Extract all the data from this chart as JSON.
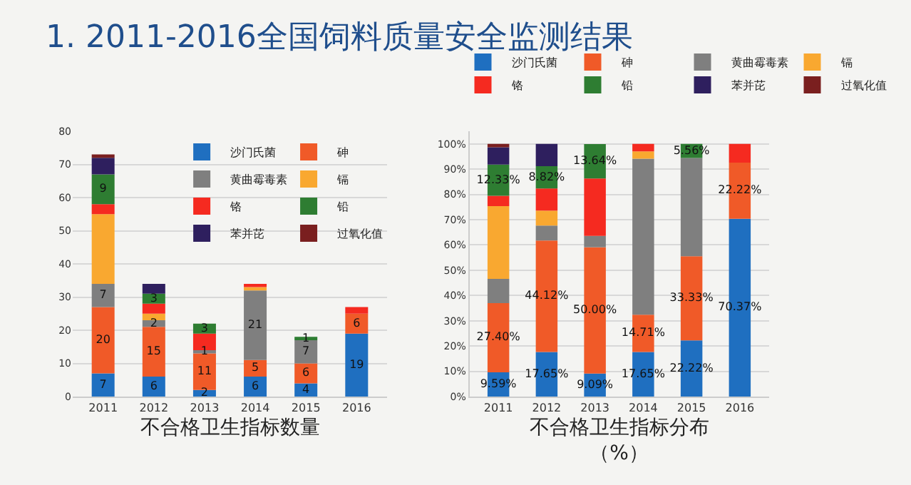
{
  "chart_data": [
    {
      "type": "bar",
      "title": "1. 2011-2016全国饲料质量安全监测结果",
      "xlabel": "不合格卫生指标数量",
      "categories": [
        "2011",
        "2012",
        "2013",
        "2014",
        "2015",
        "2016"
      ],
      "stacked": true,
      "ylim": [
        0,
        80
      ],
      "yticks": [
        0,
        10,
        20,
        30,
        40,
        50,
        60,
        70,
        80
      ],
      "grid": "y",
      "legend": "top right",
      "series": [
        {
          "name": "沙门氏菌",
          "color": "#1f6fc0",
          "values": [
            7,
            6,
            2,
            6,
            4,
            19
          ],
          "value_labels": [
            "7",
            "6",
            "2",
            "6",
            "4",
            "19"
          ]
        },
        {
          "name": "砷",
          "color": "#f05a28",
          "values": [
            20,
            15,
            11,
            5,
            6,
            6
          ],
          "value_labels": [
            "20",
            "15",
            "11",
            "5",
            "6",
            "6"
          ]
        },
        {
          "name": "黄曲霉毒素",
          "color": "#7f7f7f",
          "values": [
            7,
            2,
            1,
            21,
            7,
            0
          ],
          "value_labels": [
            "7",
            "2",
            "1",
            "21",
            "7",
            null
          ]
        },
        {
          "name": "镉",
          "color": "#f9a830",
          "values": [
            21,
            2,
            0,
            1,
            0,
            0
          ]
        },
        {
          "name": "铬",
          "color": "#f52a20",
          "values": [
            3,
            3,
            5,
            1,
            0,
            2
          ]
        },
        {
          "name": "铅",
          "color": "#2e7d32",
          "values": [
            9,
            3,
            3,
            0,
            1,
            0
          ],
          "value_labels": [
            "9",
            "3",
            "3",
            null,
            "1",
            null
          ]
        },
        {
          "name": "苯并芘",
          "color": "#2e1f5e",
          "values": [
            5,
            3,
            0,
            0,
            0,
            0
          ]
        },
        {
          "name": "过氧化值",
          "color": "#7a1f1f",
          "values": [
            1,
            0,
            0,
            0,
            0,
            0
          ]
        }
      ]
    },
    {
      "type": "bar",
      "xlabel": "不合格卫生指标分布（%）",
      "categories": [
        "2011",
        "2012",
        "2013",
        "2014",
        "2015",
        "2016"
      ],
      "stacked": true,
      "ylim": [
        0,
        105
      ],
      "yticks": [
        {
          "value": 0,
          "label": "0%"
        },
        {
          "value": 10,
          "label": "10%"
        },
        {
          "value": 20,
          "label": "20%"
        },
        {
          "value": 30,
          "label": "30%"
        },
        {
          "value": 40,
          "label": "40%"
        },
        {
          "value": 50,
          "label": "50%"
        },
        {
          "value": 60,
          "label": "60%"
        },
        {
          "value": 70,
          "label": "70%"
        },
        {
          "value": 80,
          "label": "80%"
        },
        {
          "value": 90,
          "label": "90%"
        },
        {
          "value": 100,
          "label": "100%"
        }
      ],
      "grid": "y",
      "legend": "top",
      "series": [
        {
          "name": "沙门氏菌",
          "color": "#1f6fc0",
          "values": [
            9.59,
            17.65,
            9.09,
            17.65,
            22.22,
            70.37
          ],
          "value_labels": [
            "9.59%",
            "17.65%",
            "9.09%",
            "17.65%",
            "22.22%",
            "70.37%"
          ]
        },
        {
          "name": "砷",
          "color": "#f05a28",
          "values": [
            27.4,
            44.12,
            50.0,
            14.71,
            33.33,
            22.22
          ],
          "value_labels": [
            "27.40%",
            "44.12%",
            "50.00%",
            "14.71%",
            "33.33%",
            "22.22%"
          ]
        },
        {
          "name": "黄曲霉毒素",
          "color": "#7f7f7f",
          "values": [
            9.6,
            5.9,
            4.5,
            61.8,
            38.9,
            0
          ]
        },
        {
          "name": "镉",
          "color": "#f9a830",
          "values": [
            28.8,
            5.9,
            0,
            2.9,
            0,
            0
          ]
        },
        {
          "name": "铬",
          "color": "#f52a20",
          "values": [
            4.1,
            8.8,
            22.7,
            2.9,
            0,
            7.4
          ]
        },
        {
          "name": "铅",
          "color": "#2e7d32",
          "values": [
            12.33,
            8.82,
            13.64,
            0,
            5.56,
            0
          ],
          "value_labels": [
            "12.33%",
            "8.82%",
            "13.64%",
            null,
            "5.56%",
            null
          ]
        },
        {
          "name": "苯并芘",
          "color": "#2e1f5e",
          "values": [
            6.8,
            8.8,
            0,
            0,
            0,
            0
          ]
        },
        {
          "name": "过氧化值",
          "color": "#7a1f1f",
          "values": [
            1.4,
            0,
            0,
            0,
            0,
            0
          ]
        }
      ]
    }
  ]
}
